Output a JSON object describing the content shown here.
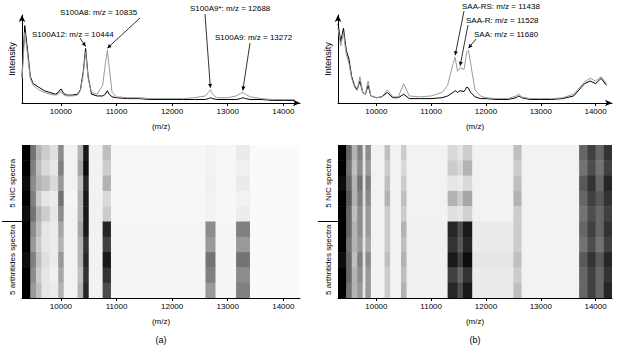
{
  "chart_data": [
    {
      "type": "line",
      "x_label": "(m/z)",
      "y_label": "Intensity",
      "x": [
        9300,
        9350,
        9400,
        9450,
        9500,
        9600,
        9700,
        9800,
        9900,
        9950,
        10000,
        10050,
        10100,
        10200,
        10300,
        10350,
        10400,
        10444,
        10490,
        10550,
        10650,
        10750,
        10800,
        10835,
        10870,
        10920,
        11000,
        11200,
        11400,
        11600,
        11800,
        12000,
        12200,
        12400,
        12600,
        12650,
        12688,
        12730,
        12800,
        13000,
        13150,
        13230,
        13272,
        13320,
        13400,
        13600,
        13800,
        14000,
        14200
      ],
      "series": [
        {
          "color": "#000000",
          "values": [
            30,
            88,
            60,
            30,
            22,
            18,
            14,
            12,
            10,
            12,
            16,
            11,
            9,
            9,
            10,
            15,
            35,
            62,
            30,
            10,
            8,
            8,
            10,
            14,
            10,
            7,
            6,
            5,
            5,
            4,
            4,
            4,
            4,
            4,
            4,
            5,
            6,
            5,
            4,
            4,
            4,
            5,
            6,
            5,
            4,
            4,
            3,
            3,
            3
          ]
        },
        {
          "color": "#9a9a9a",
          "values": [
            28,
            80,
            55,
            28,
            20,
            15,
            12,
            10,
            9,
            10,
            13,
            9,
            8,
            8,
            9,
            14,
            32,
            58,
            28,
            12,
            10,
            20,
            45,
            60,
            40,
            12,
            7,
            6,
            6,
            5,
            5,
            5,
            5,
            6,
            8,
            12,
            15,
            10,
            6,
            6,
            8,
            11,
            12,
            10,
            7,
            5,
            4,
            4,
            4
          ]
        }
      ],
      "xlim": [
        9300,
        14300
      ],
      "xticks": [
        10000,
        11000,
        12000,
        13000,
        14000
      ],
      "ylim": [
        0,
        100
      ],
      "tick_labels": "x",
      "grid": false,
      "annotations": [
        {
          "text": "S100A8: m/z = 10835",
          "x": 10835
        },
        {
          "text": "S100A12: m/z = 10444",
          "x": 10444
        },
        {
          "text": "S100A9*: m/z = 12688",
          "x": 12688
        },
        {
          "text": "S100A9: m/z = 13272",
          "x": 13272
        }
      ]
    },
    {
      "type": "heatmap",
      "x_label": "(m/z)",
      "caption": "(a)",
      "bins": [
        9300,
        9450,
        9550,
        9650,
        9800,
        9950,
        10050,
        10300,
        10400,
        10500,
        10750,
        10900,
        12600,
        12780,
        13150,
        13400,
        14300
      ],
      "cells": [
        [
          1.0,
          0.55,
          0.3,
          0.2,
          0.12,
          0.45,
          0.05,
          0.3,
          0.9,
          0.05,
          0.25,
          0.03,
          0.05,
          0.03,
          0.08,
          0.02
        ],
        [
          1.0,
          0.5,
          0.25,
          0.15,
          0.1,
          0.5,
          0.05,
          0.35,
          0.95,
          0.05,
          0.2,
          0.03,
          0.05,
          0.03,
          0.06,
          0.02
        ],
        [
          0.95,
          0.45,
          0.3,
          0.25,
          0.15,
          0.4,
          0.05,
          0.25,
          0.85,
          0.05,
          0.3,
          0.03,
          0.06,
          0.03,
          0.08,
          0.02
        ],
        [
          1.0,
          0.5,
          0.2,
          0.1,
          0.08,
          0.55,
          0.04,
          0.3,
          0.9,
          0.05,
          0.15,
          0.03,
          0.05,
          0.03,
          0.05,
          0.02
        ],
        [
          0.95,
          0.55,
          0.3,
          0.2,
          0.1,
          0.45,
          0.05,
          0.3,
          0.9,
          0.05,
          0.2,
          0.03,
          0.05,
          0.03,
          0.07,
          0.02
        ],
        [
          1.0,
          0.45,
          0.25,
          0.1,
          0.08,
          0.35,
          0.05,
          0.35,
          0.9,
          0.05,
          0.85,
          0.04,
          0.45,
          0.04,
          0.5,
          0.02
        ],
        [
          1.0,
          0.4,
          0.2,
          0.1,
          0.08,
          0.3,
          0.05,
          0.3,
          0.8,
          0.05,
          0.75,
          0.04,
          0.4,
          0.04,
          0.4,
          0.02
        ],
        [
          0.95,
          0.5,
          0.25,
          0.12,
          0.08,
          0.4,
          0.05,
          0.3,
          0.85,
          0.05,
          0.9,
          0.04,
          0.55,
          0.04,
          0.55,
          0.02
        ],
        [
          1.0,
          0.45,
          0.2,
          0.1,
          0.06,
          0.35,
          0.05,
          0.25,
          0.8,
          0.05,
          0.8,
          0.04,
          0.5,
          0.04,
          0.45,
          0.02
        ],
        [
          1.0,
          0.4,
          0.25,
          0.1,
          0.08,
          0.3,
          0.05,
          0.3,
          0.85,
          0.05,
          0.7,
          0.04,
          0.4,
          0.04,
          0.5,
          0.02
        ]
      ],
      "clim": [
        0,
        1
      ],
      "row_groups": [
        {
          "label": "5 NIC spectra",
          "rows": 5
        },
        {
          "label": "5 arthritides spectra",
          "rows": 5
        }
      ],
      "xlim": [
        9300,
        14300
      ],
      "xticks": [
        10000,
        11000,
        12000,
        13000,
        14000
      ],
      "tick_labels": "x",
      "grid": false
    },
    {
      "type": "line",
      "x_label": "(m/z)",
      "y_label": "Intensity",
      "x": [
        9300,
        9350,
        9400,
        9450,
        9500,
        9550,
        9600,
        9650,
        9700,
        9750,
        9800,
        9850,
        9900,
        10000,
        10100,
        10200,
        10300,
        10400,
        10500,
        10600,
        10800,
        11000,
        11200,
        11300,
        11400,
        11438,
        11480,
        11528,
        11600,
        11650,
        11680,
        11720,
        11800,
        11900,
        12000,
        12200,
        12400,
        12550,
        12600,
        12650,
        12800,
        13000,
        13200,
        13400,
        13600,
        13800,
        13900,
        14000,
        14100,
        14200
      ],
      "series": [
        {
          "color": "#000000",
          "values": [
            90,
            70,
            85,
            60,
            50,
            30,
            20,
            15,
            25,
            12,
            10,
            20,
            8,
            6,
            7,
            12,
            6,
            6,
            10,
            5,
            5,
            5,
            6,
            8,
            12,
            14,
            12,
            14,
            13,
            18,
            17,
            12,
            7,
            5,
            5,
            4,
            4,
            6,
            8,
            6,
            4,
            4,
            4,
            5,
            8,
            22,
            25,
            22,
            28,
            20
          ]
        },
        {
          "color": "#9a9a9a",
          "values": [
            85,
            65,
            80,
            55,
            45,
            28,
            18,
            14,
            30,
            12,
            10,
            25,
            8,
            6,
            7,
            15,
            7,
            7,
            22,
            8,
            7,
            8,
            12,
            20,
            45,
            52,
            36,
            40,
            38,
            58,
            60,
            45,
            15,
            8,
            6,
            5,
            5,
            8,
            10,
            7,
            5,
            5,
            5,
            6,
            10,
            24,
            28,
            25,
            30,
            22
          ]
        }
      ],
      "xlim": [
        9300,
        14300
      ],
      "xticks": [
        10000,
        11000,
        12000,
        13000,
        14000
      ],
      "ylim": [
        0,
        100
      ],
      "tick_labels": "x",
      "grid": false,
      "annotations": [
        {
          "text": "SAA-RS: m/z = 11438",
          "x": 11438
        },
        {
          "text": "SAA-R: m/z = 11528",
          "x": 11528
        },
        {
          "text": "SAA: m/z = 11680",
          "x": 11680
        }
      ]
    },
    {
      "type": "heatmap",
      "x_label": "(m/z)",
      "caption": "(b)",
      "bins": [
        9300,
        9450,
        9550,
        9650,
        9750,
        9800,
        9900,
        10150,
        10250,
        10450,
        10550,
        11300,
        11480,
        11580,
        11750,
        12500,
        12650,
        13700,
        13850,
        14000,
        14150,
        14300
      ],
      "cells": [
        [
          1.0,
          0.6,
          0.3,
          0.5,
          0.1,
          0.45,
          0.05,
          0.25,
          0.05,
          0.2,
          0.05,
          0.15,
          0.1,
          0.2,
          0.05,
          0.25,
          0.05,
          0.6,
          0.75,
          0.6,
          0.8
        ],
        [
          1.0,
          0.55,
          0.25,
          0.45,
          0.1,
          0.4,
          0.05,
          0.2,
          0.05,
          0.15,
          0.05,
          0.2,
          0.15,
          0.3,
          0.05,
          0.2,
          0.05,
          0.55,
          0.7,
          0.55,
          0.75
        ],
        [
          0.95,
          0.6,
          0.3,
          0.55,
          0.1,
          0.5,
          0.05,
          0.25,
          0.05,
          0.2,
          0.05,
          0.1,
          0.08,
          0.15,
          0.05,
          0.25,
          0.05,
          0.65,
          0.8,
          0.6,
          0.85
        ],
        [
          1.0,
          0.65,
          0.3,
          0.5,
          0.12,
          0.45,
          0.05,
          0.3,
          0.05,
          0.25,
          0.05,
          0.3,
          0.2,
          0.35,
          0.05,
          0.3,
          0.05,
          0.6,
          0.75,
          0.65,
          0.8
        ],
        [
          1.0,
          0.6,
          0.25,
          0.45,
          0.1,
          0.4,
          0.05,
          0.2,
          0.05,
          0.2,
          0.05,
          0.12,
          0.1,
          0.18,
          0.05,
          0.2,
          0.05,
          0.55,
          0.7,
          0.6,
          0.75
        ],
        [
          1.0,
          0.6,
          0.3,
          0.45,
          0.1,
          0.4,
          0.05,
          0.2,
          0.05,
          0.3,
          0.06,
          0.85,
          0.7,
          0.9,
          0.08,
          0.2,
          0.05,
          0.6,
          0.75,
          0.6,
          0.8
        ],
        [
          1.0,
          0.55,
          0.3,
          0.4,
          0.1,
          0.35,
          0.05,
          0.2,
          0.05,
          0.25,
          0.06,
          0.8,
          0.65,
          0.85,
          0.08,
          0.2,
          0.05,
          0.55,
          0.7,
          0.55,
          0.75
        ],
        [
          0.95,
          0.6,
          0.25,
          0.5,
          0.1,
          0.45,
          0.05,
          0.25,
          0.05,
          0.3,
          0.06,
          0.9,
          0.75,
          0.95,
          0.1,
          0.25,
          0.05,
          0.65,
          0.8,
          0.65,
          0.85
        ],
        [
          1.0,
          0.6,
          0.3,
          0.45,
          0.1,
          0.4,
          0.05,
          0.2,
          0.05,
          0.25,
          0.06,
          0.75,
          0.6,
          0.8,
          0.08,
          0.2,
          0.05,
          0.6,
          0.75,
          0.6,
          0.8
        ],
        [
          1.0,
          0.55,
          0.3,
          0.4,
          0.1,
          0.4,
          0.05,
          0.2,
          0.05,
          0.3,
          0.06,
          0.85,
          0.7,
          0.9,
          0.08,
          0.25,
          0.05,
          0.6,
          0.75,
          0.6,
          0.85
        ]
      ],
      "clim": [
        0,
        1
      ],
      "row_groups": [
        {
          "label": "5 NIC spectra",
          "rows": 5
        },
        {
          "label": "5 arthritides spectra",
          "rows": 5
        }
      ],
      "xlim": [
        9300,
        14300
      ],
      "xticks": [
        10000,
        11000,
        12000,
        13000,
        14000
      ],
      "tick_labels": "x",
      "grid": false
    }
  ]
}
